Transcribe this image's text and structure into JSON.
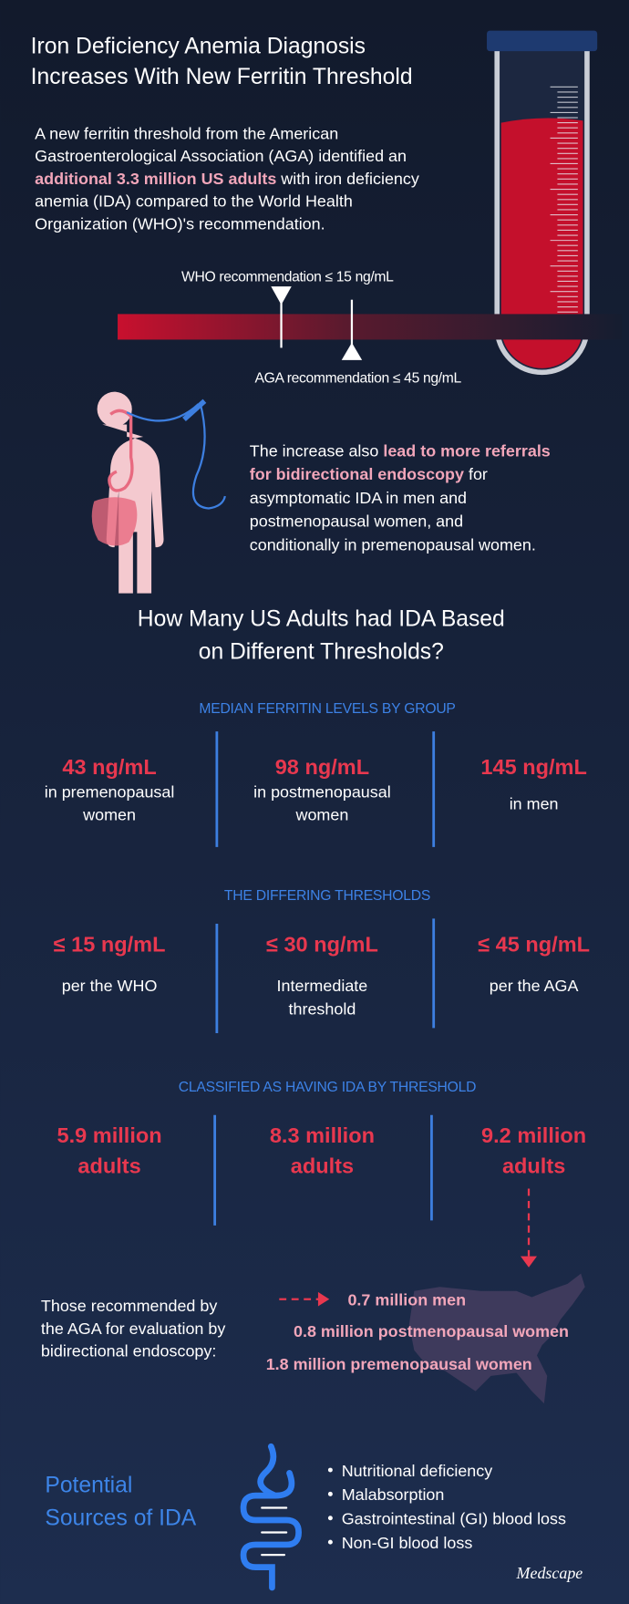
{
  "header": {
    "title": [
      "Iron Deficiency Anemia Diagnosis",
      "Increases With New Ferritin Threshold"
    ],
    "intro": [
      [
        {
          "text": "A new ferritin threshold from the American"
        }
      ],
      [
        {
          "text": "Gastroenterological Association (AGA) identified an"
        }
      ],
      [
        {
          "text": "additional 3.3 million US adults",
          "bold": true
        },
        {
          "text": " with iron deficiency"
        }
      ],
      [
        {
          "text": "anemia (IDA) compared to the World Health"
        }
      ],
      [
        {
          "text": "Organization (WHO)'s recommendation."
        }
      ]
    ]
  },
  "thresholds": {
    "who": "WHO recommendation ≤ 15 ng/mL",
    "aga": "AGA recommendation ≤ 45 ng/mL"
  },
  "referral": [
    [
      {
        "text": "The increase also "
      },
      {
        "text": "lead to more referrals",
        "bold": true
      }
    ],
    [
      {
        "text": "for bidirectional endoscopy",
        "bold": true
      },
      {
        "text": " for"
      }
    ],
    [
      {
        "text": "asymptomatic IDA in men and"
      }
    ],
    [
      {
        "text": "postmenopausal women, and"
      }
    ],
    [
      {
        "text": "conditionally in premenopausal women."
      }
    ]
  ],
  "section_title": [
    "How Many US Adults had IDA Based",
    "on Different Thresholds?"
  ],
  "groups": [
    {
      "heading": "MEDIAN FERRITIN LEVELS BY GROUP",
      "items": [
        {
          "value": [
            "43 ng/mL"
          ],
          "label": [
            "in premenopausal",
            "women"
          ]
        },
        {
          "value": [
            "98 ng/mL"
          ],
          "label": [
            "in postmenopausal",
            "women"
          ]
        },
        {
          "value": [
            "145 ng/mL"
          ],
          "label": [
            "in men"
          ]
        }
      ]
    },
    {
      "heading": "THE DIFFERING THRESHOLDS",
      "items": [
        {
          "value": [
            "≤ 15 ng/mL"
          ],
          "label": [
            "per the WHO"
          ]
        },
        {
          "value": [
            "≤ 30 ng/mL"
          ],
          "label": [
            "Intermediate",
            "threshold"
          ]
        },
        {
          "value": [
            "≤ 45 ng/mL"
          ],
          "label": [
            "per the AGA"
          ]
        }
      ]
    },
    {
      "heading": "CLASSIFIED AS HAVING IDA BY THRESHOLD",
      "items": [
        {
          "value": [
            "5.9 million",
            "adults"
          ],
          "label": []
        },
        {
          "value": [
            "8.3 million",
            "adults"
          ],
          "label": []
        },
        {
          "value": [
            "9.2 million",
            "adults"
          ],
          "label": []
        }
      ]
    }
  ],
  "evaluation": {
    "intro": [
      "Those recommended by",
      "the AGA for evaluation by",
      "bidirectional endoscopy:"
    ],
    "breakdown": [
      "0.7 million men",
      "0.8 million postmenopausal women",
      "1.8 million premenopausal women"
    ]
  },
  "sources": {
    "title": [
      "Potential",
      "Sources of IDA"
    ],
    "items": [
      "Nutritional deficiency",
      "Malabsorption",
      "Gastrointestinal (GI) blood loss",
      "Non-GI blood loss"
    ]
  },
  "footer": {
    "logo": "Medscape"
  }
}
